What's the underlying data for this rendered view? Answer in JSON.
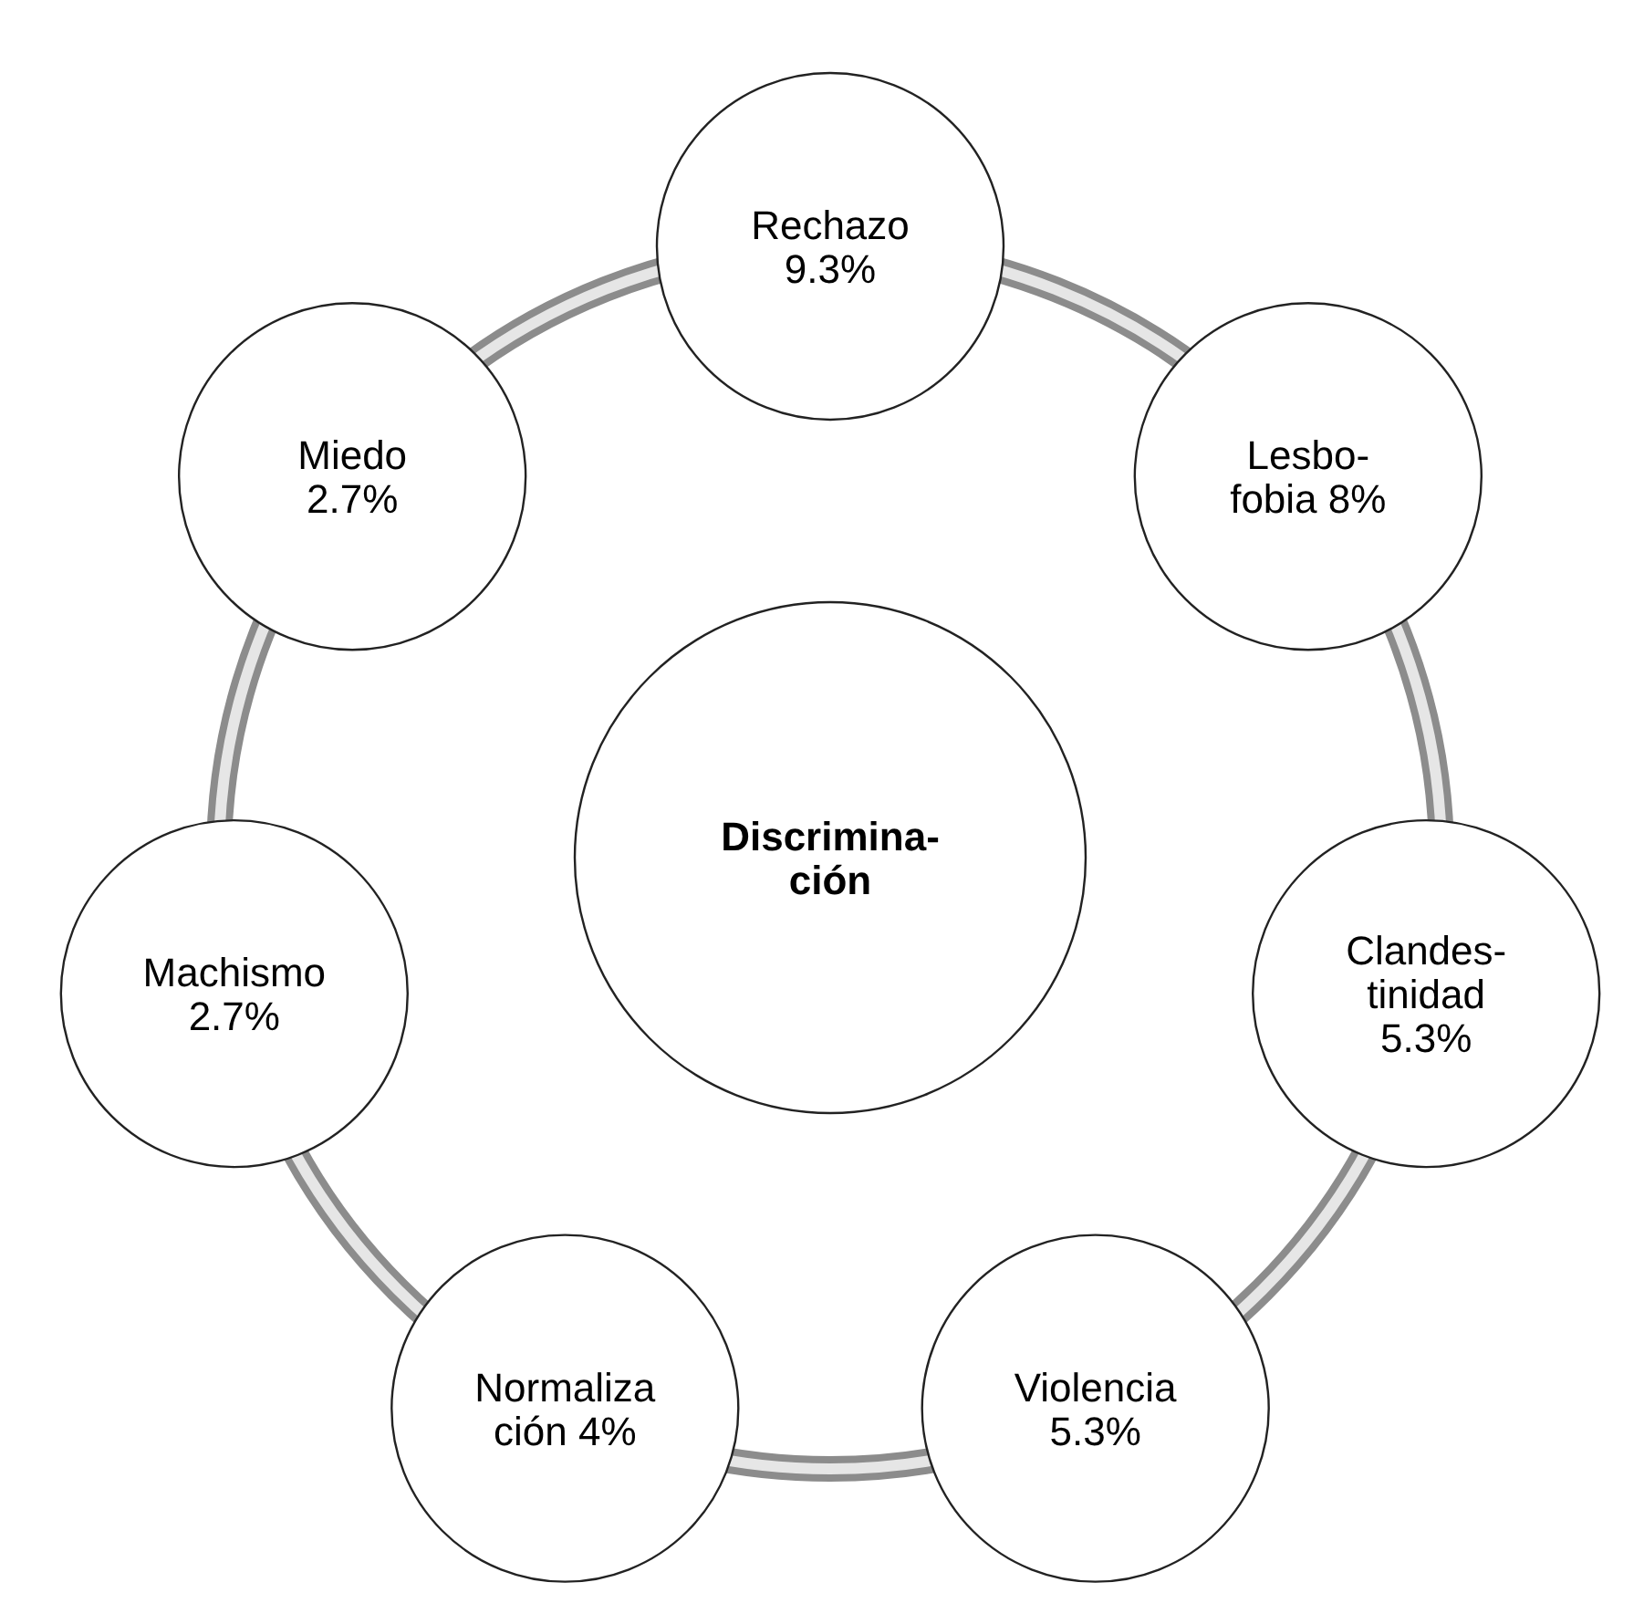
{
  "chart_data": {
    "type": "other",
    "title": "Discrimina-\nción",
    "categories": [
      "Rechazo\n",
      "Lesbo-\nfobia ",
      "Clandes-\ntinidad\n",
      "Violencia\n",
      "Normaliza\nción ",
      "Machismo\n",
      "Miedo\n"
    ],
    "values": [
      9.3,
      8,
      5.3,
      5.3,
      4,
      2.7,
      2.7
    ],
    "value_labels": [
      "9.3%",
      "8%",
      "5.3%",
      "5.3%",
      "4%",
      "2.7%",
      "2.7%"
    ]
  }
}
